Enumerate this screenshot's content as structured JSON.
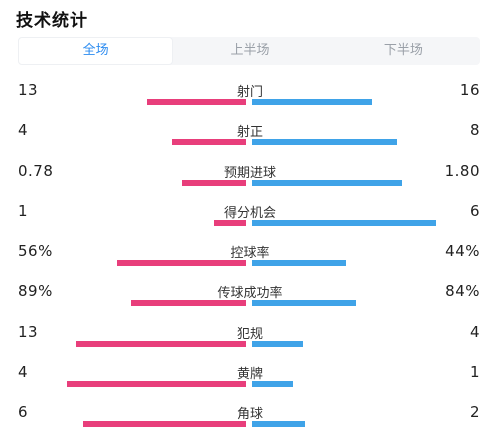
{
  "title": "技术统计",
  "tabs": [
    {
      "label": "全场",
      "active": true
    },
    {
      "label": "上半场",
      "active": false
    },
    {
      "label": "下半场",
      "active": false
    }
  ],
  "colors": {
    "home_bar": "#e83e7b",
    "away_bar": "#3fa3e8",
    "active_tab": "#2d8cf0"
  },
  "stats": [
    {
      "label": "射门",
      "home": "13",
      "away": "16",
      "home_share": 0.43,
      "away_share": 0.52
    },
    {
      "label": "射正",
      "home": "4",
      "away": "8",
      "home_share": 0.32,
      "away_share": 0.63
    },
    {
      "label": "预期进球",
      "home": "0.78",
      "away": "1.80",
      "home_share": 0.28,
      "away_share": 0.65
    },
    {
      "label": "得分机会",
      "home": "1",
      "away": "6",
      "home_share": 0.14,
      "away_share": 0.8
    },
    {
      "label": "控球率",
      "home": "56%",
      "away": "44%",
      "home_share": 0.56,
      "away_share": 0.41
    },
    {
      "label": "传球成功率",
      "home": "89%",
      "away": "84%",
      "home_share": 0.5,
      "away_share": 0.45
    },
    {
      "label": "犯规",
      "home": "13",
      "away": "4",
      "home_share": 0.74,
      "away_share": 0.22
    },
    {
      "label": "黄牌",
      "home": "4",
      "away": "1",
      "home_share": 0.78,
      "away_share": 0.18
    },
    {
      "label": "角球",
      "home": "6",
      "away": "2",
      "home_share": 0.71,
      "away_share": 0.23
    }
  ]
}
